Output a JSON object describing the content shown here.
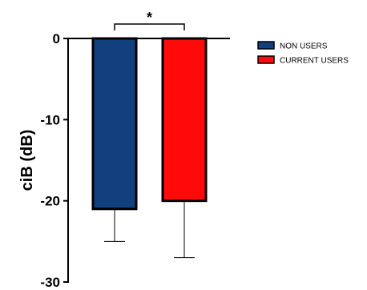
{
  "chart_data": {
    "type": "bar",
    "categories": [
      "NON USERS",
      "CURRENT USERS"
    ],
    "values": [
      -21,
      -20
    ],
    "error_bars": [
      4,
      7
    ],
    "colors": [
      "#123f7d",
      "#ff0a0a"
    ],
    "ylabel": "ciB (dB)",
    "xlabel": "",
    "ylim": [
      -30,
      0
    ],
    "yticks": [
      0,
      -10,
      -20,
      -30
    ],
    "ytick_labels": [
      "0",
      "-10",
      "-20",
      "-30"
    ],
    "legend": {
      "placement": "top-right",
      "entries": [
        "NON USERS",
        "CURRENT USERS"
      ]
    },
    "annotations": [
      {
        "text": "*",
        "between": [
          "NON USERS",
          "CURRENT USERS"
        ]
      }
    ],
    "grid": false
  }
}
